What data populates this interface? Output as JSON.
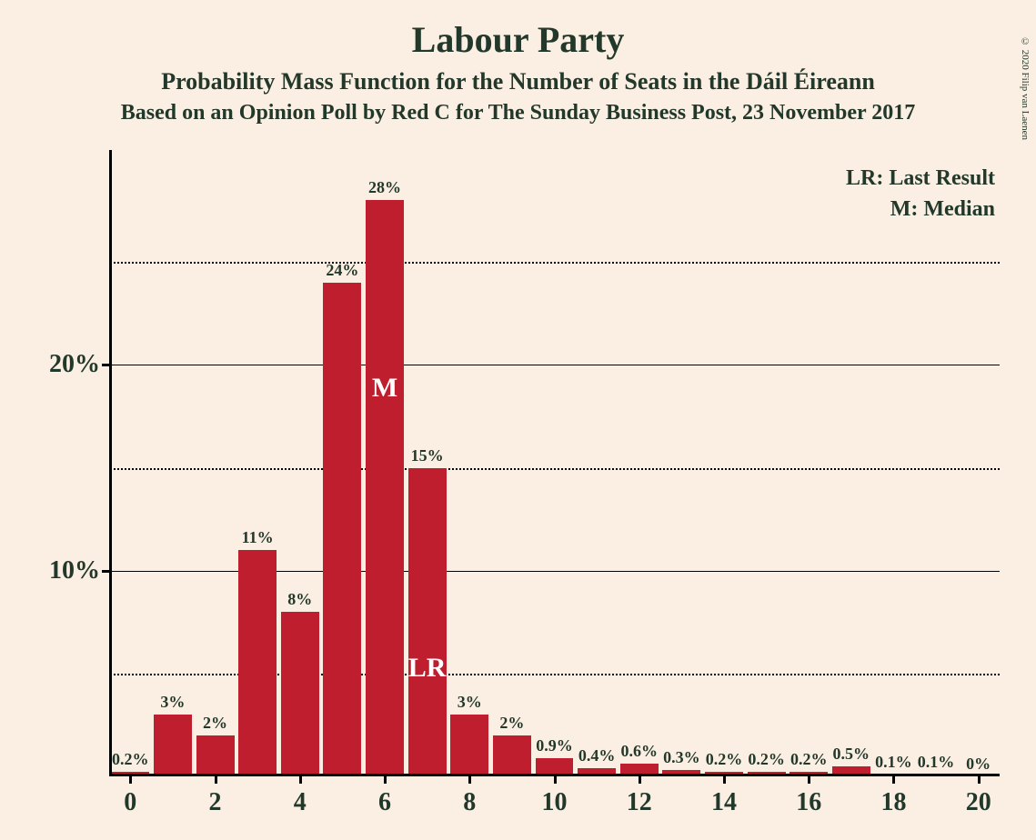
{
  "title": "Labour Party",
  "subtitle": "Probability Mass Function for the Number of Seats in the Dáil Éireann",
  "sourceline": "Based on an Opinion Poll by Red C for The Sunday Business Post, 23 November 2017",
  "legend_lr": "LR: Last Result",
  "legend_m": "M: Median",
  "copyright": "© 2020 Filip van Laenen",
  "chart": {
    "type": "bar",
    "bar_color": "#be1e2d",
    "background_color": "#fbeee2",
    "text_color": "#22382a",
    "gridline_color": "#000000",
    "title_fontsize": 40,
    "subtitle_fontsize": 26,
    "sourceline_fontsize": 24,
    "legend_fontsize": 24,
    "ytick_fontsize": 28,
    "xtick_fontsize": 28,
    "barlabel_fontsize": 18,
    "annot_fontsize": 30,
    "y_max": 30,
    "y_major_ticks": [
      10,
      20
    ],
    "y_minor_ticks": [
      5,
      15,
      25
    ],
    "x_tick_labels": [
      "0",
      "2",
      "4",
      "6",
      "8",
      "10",
      "12",
      "14",
      "16",
      "18",
      "20"
    ],
    "x_tick_positions": [
      0,
      2,
      4,
      6,
      8,
      10,
      12,
      14,
      16,
      18,
      20
    ],
    "categories": [
      0,
      1,
      2,
      3,
      4,
      5,
      6,
      7,
      8,
      9,
      10,
      11,
      12,
      13,
      14,
      15,
      16,
      17,
      18,
      19,
      20
    ],
    "values": [
      0.2,
      3,
      2,
      11,
      8,
      24,
      28,
      15,
      3,
      2,
      0.9,
      0.4,
      0.6,
      0.3,
      0.2,
      0.2,
      0.2,
      0.5,
      0.1,
      0.1,
      0
    ],
    "value_labels": [
      "0.2%",
      "3%",
      "2%",
      "11%",
      "8%",
      "24%",
      "28%",
      "15%",
      "3%",
      "2%",
      "0.9%",
      "0.4%",
      "0.6%",
      "0.3%",
      "0.2%",
      "0.2%",
      "0.2%",
      "0.5%",
      "0.1%",
      "0.1%",
      "0%"
    ],
    "bar_width_ratio": 0.9,
    "median_index": 6,
    "median_label": "M",
    "lr_index": 7,
    "lr_label": "LR"
  }
}
